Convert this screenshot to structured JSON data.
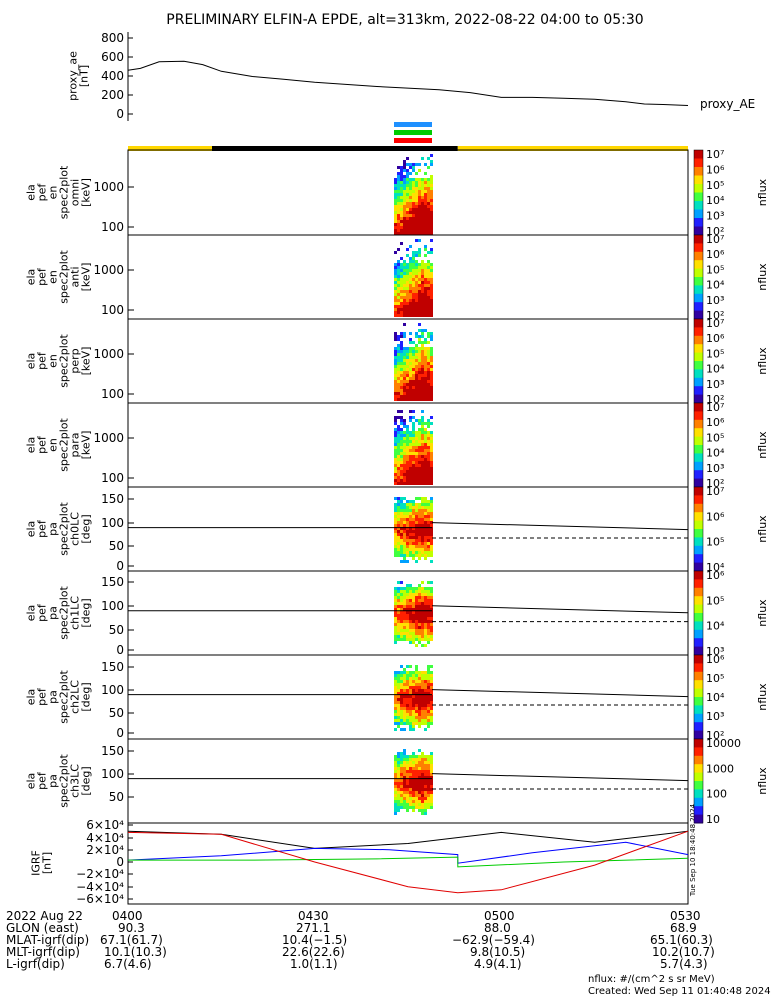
{
  "title": "PRELIMINARY ELFIN-A EPDE, alt=313km, 2022-08-22 04:00 to 05:30",
  "time_axis": {
    "start_hhmm": "0400",
    "end_hhmm": "0530",
    "start_min": 0,
    "end_min": 90
  },
  "status_bars": {
    "colors_top": [
      "#1e90ff",
      "#00cc00",
      "#ff0000"
    ],
    "sunlight": [
      {
        "from": 0,
        "to": 13.5,
        "color": "#ffd700"
      },
      {
        "from": 13.5,
        "to": 53,
        "color": "#000000"
      },
      {
        "from": 53,
        "to": 90,
        "color": "#ffd700"
      }
    ]
  },
  "panels": [
    {
      "id": "proxy_ae",
      "ylabel": [
        "proxy_ae",
        "[nT]"
      ],
      "ticks": [
        "800",
        "600",
        "400",
        "200",
        "0"
      ],
      "right_label": "proxy_AE",
      "ylim": [
        0,
        800
      ]
    },
    {
      "id": "en_omni",
      "ylabel": [
        "ela",
        "pef",
        "en",
        "spec2plot",
        "omni",
        "[keV]"
      ],
      "ticks": [
        "1000",
        "100"
      ]
    },
    {
      "id": "en_anti",
      "ylabel": [
        "ela",
        "pef",
        "en",
        "spec2plot",
        "anti",
        "[keV]"
      ],
      "ticks": [
        "1000",
        "100"
      ]
    },
    {
      "id": "en_perp",
      "ylabel": [
        "ela",
        "pef",
        "en",
        "spec2plot",
        "perp",
        "[keV]"
      ],
      "ticks": [
        "1000",
        "100"
      ]
    },
    {
      "id": "en_para",
      "ylabel": [
        "ela",
        "pef",
        "en",
        "spec2plot",
        "para",
        "[keV]"
      ],
      "ticks": [
        "1000",
        "100"
      ]
    },
    {
      "id": "pa_ch0",
      "ylabel": [
        "ela",
        "pef",
        "pa",
        "spec2plot",
        "ch0LC",
        "[deg]"
      ],
      "ticks": [
        "150",
        "100",
        "50",
        "0"
      ]
    },
    {
      "id": "pa_ch1",
      "ylabel": [
        "ela",
        "pef",
        "pa",
        "spec2plot",
        "ch1LC",
        "[deg]"
      ],
      "ticks": [
        "150",
        "100",
        "50",
        "0"
      ]
    },
    {
      "id": "pa_ch2",
      "ylabel": [
        "ela",
        "pef",
        "pa",
        "spec2plot",
        "ch2LC",
        "[deg]"
      ],
      "ticks": [
        "150",
        "100",
        "50",
        "0"
      ]
    },
    {
      "id": "pa_ch3",
      "ylabel": [
        "ela",
        "pef",
        "pa",
        "spec2plot",
        "ch3LC",
        "[deg]"
      ],
      "ticks": [
        "150",
        "100",
        "50"
      ]
    },
    {
      "id": "igrf",
      "ylabel": [
        "IGRF",
        "[nT]"
      ],
      "ticks": [
        "6×10⁴",
        "4×10⁴",
        "2×10⁴",
        "0",
        "−2×10⁴",
        "−4×10⁴",
        "−6×10⁴"
      ]
    }
  ],
  "colorbars": [
    {
      "label": "nflux",
      "ticks": [
        "10⁷",
        "10⁶",
        "10⁵",
        "10⁴",
        "10³",
        "10²"
      ]
    },
    {
      "label": "nflux",
      "ticks": [
        "10⁷",
        "10⁶",
        "10⁵",
        "10⁴",
        "10³",
        "10²"
      ]
    },
    {
      "label": "nflux",
      "ticks": [
        "10⁷",
        "10⁶",
        "10⁵",
        "10⁴",
        "10³",
        "10²"
      ]
    },
    {
      "label": "nflux",
      "ticks": [
        "10⁷",
        "10⁶",
        "10⁵",
        "10⁴",
        "10³",
        "10²"
      ]
    },
    {
      "label": "nflux",
      "ticks": [
        "10⁷",
        "10⁶",
        "10⁵",
        "10⁴"
      ]
    },
    {
      "label": "nflux",
      "ticks": [
        "10⁶",
        "10⁵",
        "10⁴",
        "10³"
      ]
    },
    {
      "label": "nflux",
      "ticks": [
        "10⁶",
        "10⁵",
        "10⁴",
        "10³",
        "10²"
      ]
    },
    {
      "label": "nflux",
      "ticks": [
        "10000",
        "1000",
        "100",
        "10"
      ]
    }
  ],
  "chart_data": {
    "type": "line",
    "title": "PRELIMINARY ELFIN-A EPDE, alt=313km, 2022-08-22 04:00 to 05:30",
    "x_unit": "minutes after 04:00",
    "proxy_ae": {
      "name": "proxy_AE",
      "ylim": [
        0,
        800
      ],
      "x": [
        0,
        2,
        5,
        9,
        12,
        15,
        20,
        25,
        30,
        40,
        50,
        55,
        60,
        65,
        70,
        75,
        80,
        83,
        86,
        90
      ],
      "y": [
        460,
        480,
        550,
        555,
        520,
        450,
        395,
        365,
        335,
        290,
        255,
        225,
        175,
        175,
        165,
        155,
        130,
        105,
        100,
        90
      ]
    },
    "sc_events": [
      49.5,
      52.5
    ],
    "pa_loss_cone": {
      "solid_y": [
        90,
        90
      ],
      "after_y": [
        110,
        95
      ],
      "dashed_y": 70
    },
    "igrf": {
      "ylim": [
        -60000,
        60000
      ],
      "series": [
        {
          "color": "black",
          "x": [
            0,
            15,
            30,
            45,
            60,
            75,
            90
          ],
          "y": [
            50000,
            45000,
            22000,
            30000,
            48000,
            32000,
            50000
          ]
        },
        {
          "color": "blue",
          "x": [
            0,
            15,
            30,
            42,
            53,
            53,
            65,
            80,
            90
          ],
          "y": [
            3000,
            10000,
            22000,
            20000,
            12000,
            -2000,
            15000,
            32000,
            12000
          ]
        },
        {
          "color": "green",
          "x": [
            0,
            20,
            40,
            53,
            53,
            70,
            90
          ],
          "y": [
            3000,
            3000,
            5000,
            8000,
            -8000,
            0,
            6000
          ]
        },
        {
          "color": "red",
          "x": [
            0,
            15,
            30,
            45,
            53,
            60,
            75,
            90
          ],
          "y": [
            48000,
            45000,
            0,
            -40000,
            -50000,
            -45000,
            -5000,
            50000
          ]
        }
      ]
    }
  },
  "footer": {
    "rows": [
      {
        "label": "2022 Aug 22",
        "vals": [
          "0400",
          "0430",
          "0500",
          "0530"
        ]
      },
      {
        "label": "GLON (east)",
        "vals": [
          "90.3",
          "271.1",
          "88.0",
          "68.9"
        ]
      },
      {
        "label": "MLAT-igrf(dip)",
        "vals": [
          "67.1(61.7)",
          "10.4(−1.5)",
          "−62.9(−59.4)",
          "65.1(60.3)"
        ]
      },
      {
        "label": "MLT-igrf(dip)",
        "vals": [
          "10.1(10.3)",
          "22.6(22.6)",
          "9.8(10.5)",
          "10.2(10.7)"
        ]
      },
      {
        "label": "L-igrf(dip)",
        "vals": [
          "6.7(4.6)",
          "1.0(1.1)",
          "4.9(4.1)",
          "5.7(4.3)"
        ]
      }
    ],
    "nflux_units": "nflux: #/(cm^2 s sr MeV)",
    "created": "Created: Wed Sep 11 01:40:48 2024",
    "stamp": "Tue Sep 10 18:40:48 2024"
  }
}
